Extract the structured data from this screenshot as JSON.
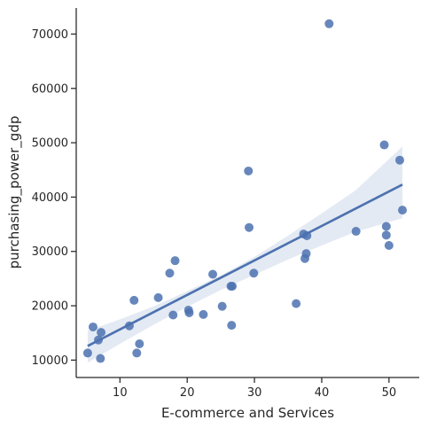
{
  "chart_data": {
    "type": "scatter",
    "title": "",
    "xlabel": "E-commerce and Services",
    "ylabel": "purchasing_power_gdp",
    "xlim": [
      3.5,
      54.5
    ],
    "ylim": [
      6800,
      74800
    ],
    "x_ticks": [
      10,
      20,
      30,
      40,
      50
    ],
    "y_ticks": [
      10000,
      20000,
      30000,
      40000,
      50000,
      60000,
      70000
    ],
    "grid": false,
    "colors": {
      "points": "#4c72b0",
      "line": "#4c72b0",
      "band": "#4c72b0",
      "axis": "#262626"
    },
    "points": [
      {
        "x": 5.2,
        "y": 11300
      },
      {
        "x": 6.0,
        "y": 16100
      },
      {
        "x": 6.8,
        "y": 13700
      },
      {
        "x": 7.1,
        "y": 10300
      },
      {
        "x": 7.2,
        "y": 15100
      },
      {
        "x": 11.4,
        "y": 16300
      },
      {
        "x": 12.1,
        "y": 21000
      },
      {
        "x": 12.5,
        "y": 11300
      },
      {
        "x": 12.9,
        "y": 13000
      },
      {
        "x": 15.7,
        "y": 21500
      },
      {
        "x": 17.4,
        "y": 26000
      },
      {
        "x": 17.9,
        "y": 18300
      },
      {
        "x": 18.2,
        "y": 28300
      },
      {
        "x": 20.2,
        "y": 19200
      },
      {
        "x": 20.3,
        "y": 18700
      },
      {
        "x": 22.4,
        "y": 18400
      },
      {
        "x": 23.8,
        "y": 25800
      },
      {
        "x": 25.2,
        "y": 19900
      },
      {
        "x": 26.5,
        "y": 23600
      },
      {
        "x": 26.6,
        "y": 16400
      },
      {
        "x": 26.7,
        "y": 23600
      },
      {
        "x": 29.1,
        "y": 44800
      },
      {
        "x": 29.2,
        "y": 34400
      },
      {
        "x": 29.9,
        "y": 26000
      },
      {
        "x": 36.2,
        "y": 20400
      },
      {
        "x": 37.3,
        "y": 33200
      },
      {
        "x": 37.5,
        "y": 28700
      },
      {
        "x": 37.7,
        "y": 29600
      },
      {
        "x": 37.8,
        "y": 32900
      },
      {
        "x": 41.1,
        "y": 71900
      },
      {
        "x": 45.1,
        "y": 33700
      },
      {
        "x": 49.3,
        "y": 49600
      },
      {
        "x": 49.6,
        "y": 34600
      },
      {
        "x": 49.6,
        "y": 33000
      },
      {
        "x": 50.0,
        "y": 31100
      },
      {
        "x": 51.6,
        "y": 46800
      },
      {
        "x": 52.0,
        "y": 37600
      }
    ],
    "regression": {
      "x": [
        5.2,
        52.0
      ],
      "y": [
        12600,
        42300
      ],
      "ci_upper": [
        {
          "x": 5.2,
          "y": 15400
        },
        {
          "x": 10,
          "y": 17500
        },
        {
          "x": 15,
          "y": 19900
        },
        {
          "x": 20,
          "y": 22700
        },
        {
          "x": 25,
          "y": 25600
        },
        {
          "x": 30,
          "y": 29000
        },
        {
          "x": 35,
          "y": 32900
        },
        {
          "x": 40,
          "y": 37000
        },
        {
          "x": 45,
          "y": 41200
        },
        {
          "x": 52.0,
          "y": 49300
        }
      ],
      "ci_lower": [
        {
          "x": 5.2,
          "y": 9500
        },
        {
          "x": 10,
          "y": 13000
        },
        {
          "x": 15,
          "y": 16500
        },
        {
          "x": 20,
          "y": 19800
        },
        {
          "x": 25,
          "y": 22900
        },
        {
          "x": 30,
          "y": 25700
        },
        {
          "x": 35,
          "y": 28500
        },
        {
          "x": 40,
          "y": 31100
        },
        {
          "x": 45,
          "y": 33600
        },
        {
          "x": 52.0,
          "y": 36100
        }
      ]
    }
  }
}
